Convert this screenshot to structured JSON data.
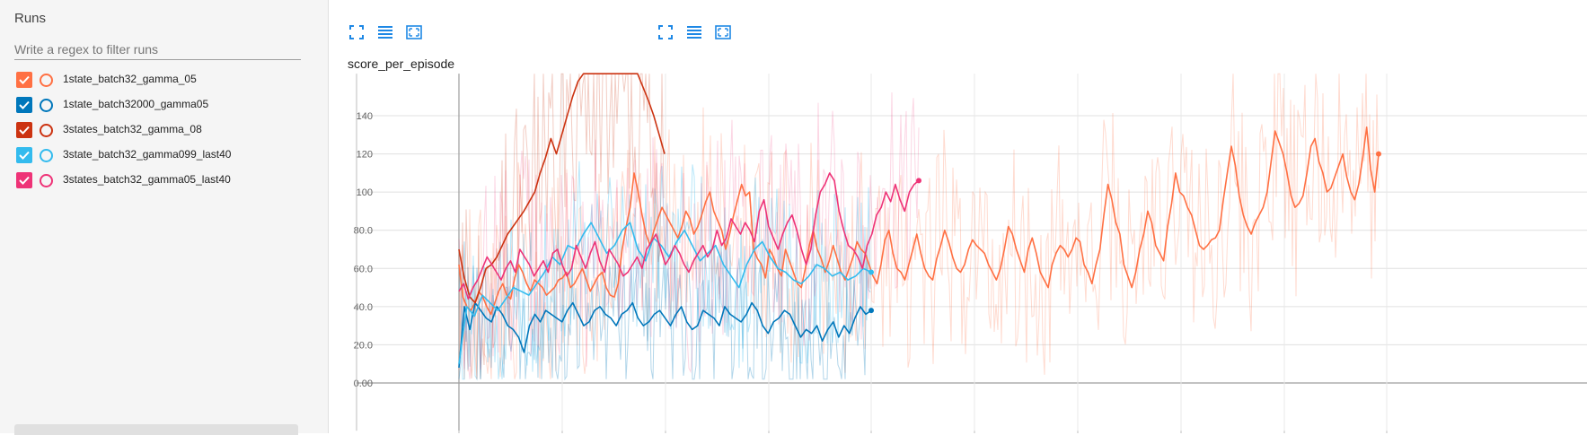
{
  "sidebar": {
    "title": "Runs",
    "filter_placeholder": "Write a regex to filter runs",
    "runs": [
      {
        "label": "1state_batch32_gamma_05",
        "color": "#ff7043",
        "checked": true
      },
      {
        "label": "1state_batch32000_gamma05",
        "color": "#0077bb",
        "checked": true
      },
      {
        "label": "3states_batch32_gamma_08",
        "color": "#cc3311",
        "checked": true
      },
      {
        "label": "3state_batch32_gamma099_last40",
        "color": "#33bbee",
        "checked": true
      },
      {
        "label": "3states_batch32_gamma05_last40",
        "color": "#ee3377",
        "checked": true
      }
    ]
  },
  "toolbar": {
    "icons": [
      "fullscreen-icon",
      "list-icon",
      "fit-domain-icon"
    ]
  },
  "chart_data": {
    "type": "line",
    "title": "score_per_episode",
    "ylim": [
      -25,
      162
    ],
    "yticks": [
      "0.00",
      "20.0",
      "40.0",
      "60.0",
      "80.0",
      "100",
      "120",
      "140"
    ],
    "ytick_values": [
      0,
      20,
      40,
      60,
      80,
      100,
      120,
      140
    ],
    "grid": true,
    "series": [
      {
        "name": "1state_batch32_gamma_05",
        "color": "#ff7043",
        "values": [
          62,
          45,
          40,
          38,
          42,
          48,
          45,
          40,
          36,
          42,
          48,
          52,
          46,
          44,
          55,
          62,
          58,
          52,
          48,
          54,
          52,
          50,
          46,
          48,
          50,
          54,
          55,
          58,
          50,
          52,
          56,
          60,
          54,
          48,
          52,
          56,
          58,
          50,
          46,
          45,
          52,
          70,
          82,
          92,
          110,
          100,
          88,
          78,
          72,
          80,
          86,
          92,
          88,
          84,
          80,
          76,
          82,
          90,
          86,
          78,
          82,
          88,
          95,
          100,
          90,
          85,
          80,
          70,
          78,
          88,
          96,
          104,
          98,
          100,
          70,
          65,
          62,
          55,
          70,
          66,
          60,
          56,
          70,
          64,
          58,
          52,
          50,
          60,
          72,
          80,
          70,
          65,
          58,
          64,
          72,
          65,
          58,
          54,
          60,
          66,
          74,
          70,
          68,
          62,
          56,
          52,
          62,
          75,
          80,
          68,
          60,
          58,
          54,
          62,
          70,
          78,
          68,
          60,
          56,
          54,
          65,
          72,
          80,
          74,
          66,
          60,
          58,
          62,
          70,
          75,
          72,
          70,
          68,
          62,
          58,
          54,
          60,
          70,
          82,
          78,
          70,
          64,
          58,
          70,
          76,
          68,
          58,
          54,
          50,
          62,
          68,
          72,
          70,
          66,
          70,
          76,
          74,
          62,
          58,
          52,
          62,
          70,
          88,
          104,
          96,
          84,
          78,
          62,
          56,
          50,
          58,
          70,
          78,
          90,
          84,
          72,
          68,
          64,
          82,
          94,
          110,
          100,
          98,
          92,
          88,
          80,
          72,
          70,
          72,
          75,
          76,
          80,
          96,
          110,
          124,
          114,
          98,
          88,
          82,
          78,
          84,
          88,
          92,
          100,
          116,
          132,
          126,
          120,
          110,
          98,
          92,
          94,
          98,
          110,
          124,
          128,
          116,
          110,
          100,
          102,
          108,
          114,
          120,
          108,
          100,
          96,
          104,
          118,
          134,
          112,
          100,
          120
        ]
      },
      {
        "name": "1state_batch32000_gamma05",
        "color": "#0077bb",
        "values": [
          8,
          40,
          28,
          42,
          38,
          34,
          32,
          40,
          36,
          30,
          28,
          24,
          16,
          30,
          36,
          32,
          38,
          36,
          34,
          32,
          38,
          42,
          36,
          30,
          32,
          38,
          40,
          36,
          34,
          30,
          36,
          38,
          42,
          34,
          30,
          32,
          36,
          38,
          34,
          30,
          36,
          40,
          32,
          28,
          30,
          38,
          36,
          34,
          30,
          40,
          36,
          34,
          32,
          36,
          42,
          38,
          30,
          26,
          32,
          34,
          38,
          36,
          30,
          24,
          28,
          26,
          30,
          22,
          28,
          32,
          24,
          30,
          26,
          34,
          40,
          36,
          38
        ]
      },
      {
        "name": "3states_batch32_gamma_08",
        "color": "#cc3311",
        "values": [
          70,
          55,
          45,
          42,
          50,
          60,
          62,
          66,
          72,
          78,
          82,
          86,
          90,
          95,
          100,
          110,
          118,
          128,
          120,
          130,
          140,
          150,
          158,
          162,
          162,
          162,
          162,
          162,
          162,
          162,
          162,
          162,
          162,
          162,
          155,
          148,
          140,
          130,
          120
        ]
      },
      {
        "name": "3state_batch32_gamma099_last40",
        "color": "#33bbee",
        "values": [
          10,
          40,
          35,
          46,
          42,
          38,
          44,
          50,
          48,
          46,
          52,
          58,
          66,
          62,
          72,
          70,
          78,
          84,
          76,
          68,
          72,
          80,
          84,
          70,
          64,
          76,
          72,
          66,
          74,
          80,
          72,
          64,
          68,
          72,
          62,
          56,
          50,
          62,
          70,
          74,
          66,
          60,
          58,
          54,
          52,
          56,
          62,
          60,
          56,
          58,
          54,
          56,
          60,
          58
        ]
      },
      {
        "name": "3states_batch32_gamma05_last40",
        "color": "#ee3377",
        "values": [
          48,
          52,
          44,
          50,
          54,
          60,
          66,
          62,
          58,
          54,
          60,
          64,
          58,
          70,
          66,
          62,
          56,
          60,
          64,
          58,
          68,
          70,
          62,
          56,
          60,
          72,
          66,
          60,
          68,
          74,
          64,
          58,
          70,
          66,
          62,
          56,
          58,
          62,
          66,
          60,
          70,
          74,
          78,
          70,
          62,
          66,
          72,
          68,
          62,
          58,
          64,
          68,
          72,
          66,
          70,
          80,
          72,
          76,
          86,
          82,
          78,
          84,
          80,
          74,
          90,
          96,
          82,
          76,
          70,
          78,
          84,
          88,
          80,
          70,
          62,
          70,
          88,
          100,
          104,
          110,
          106,
          90,
          80,
          72,
          70,
          66,
          60,
          72,
          78,
          88,
          92,
          100,
          95,
          104,
          96,
          90,
          100,
          104,
          106
        ]
      }
    ]
  }
}
